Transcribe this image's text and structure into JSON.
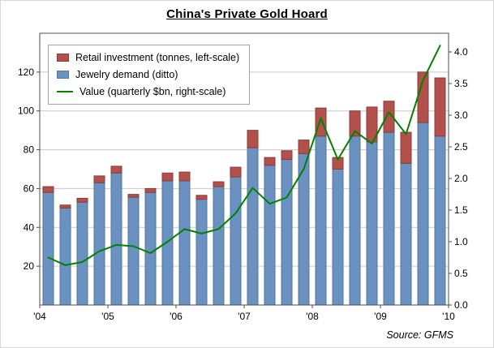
{
  "title": "China's Private Gold Hoard",
  "source_note": "Source: GFMS",
  "legend": [
    {
      "label": "Retail investment (tonnes, left-scale)",
      "swatch": "red-box"
    },
    {
      "label": "Jewelry demand (ditto)",
      "swatch": "blue-box"
    },
    {
      "label": "Value (quarterly $bn, right-scale)",
      "swatch": "green-line"
    }
  ],
  "colors": {
    "retail": "#b2504b",
    "retail_edge": "#8c3c38",
    "jewelry": "#6b91c1",
    "jewelry_edge": "#53779f",
    "line": "#008200",
    "grid": "#c9c9c9",
    "frame": "#4d4d4d",
    "text": "#000000"
  },
  "chart_data": {
    "type": "bar+line",
    "title": "China's Private Gold Hoard",
    "x_labels": [
      "'04",
      "'05",
      "'06",
      "'07",
      "'08",
      "'09",
      "'10"
    ],
    "categories": [
      "2004 Q1",
      "2004 Q2",
      "2004 Q3",
      "2004 Q4",
      "2005 Q1",
      "2005 Q2",
      "2005 Q3",
      "2005 Q4",
      "2006 Q1",
      "2006 Q2",
      "2006 Q3",
      "2006 Q4",
      "2007 Q1",
      "2007 Q2",
      "2007 Q3",
      "2007 Q4",
      "2008 Q1",
      "2008 Q2",
      "2008 Q3",
      "2008 Q4",
      "2009 Q1",
      "2009 Q2",
      "2009 Q3",
      "2009 Q4"
    ],
    "series": [
      {
        "name": "Jewelry demand (tonnes)",
        "type": "bar-stack-bottom",
        "axis": "left",
        "values": [
          58,
          50,
          53,
          63,
          68,
          55.5,
          58,
          64,
          64,
          54.5,
          61,
          66,
          81,
          72,
          75,
          78,
          87,
          70,
          87,
          84,
          89,
          73,
          94,
          87
        ]
      },
      {
        "name": "Retail investment (tonnes)",
        "type": "bar-stack-top",
        "axis": "left",
        "values": [
          3,
          1.5,
          2,
          3.5,
          3.5,
          1.5,
          2,
          4,
          4.5,
          2,
          2.5,
          5,
          9,
          4,
          4.5,
          7,
          14.5,
          6,
          13,
          18,
          16,
          16,
          26,
          30
        ]
      },
      {
        "name": "Value (quarterly $bn)",
        "type": "line",
        "axis": "right",
        "values": [
          0.75,
          0.63,
          0.68,
          0.85,
          0.95,
          0.93,
          0.82,
          1.0,
          1.2,
          1.13,
          1.2,
          1.45,
          1.85,
          1.6,
          1.7,
          2.15,
          2.95,
          2.3,
          2.75,
          2.55,
          3.05,
          2.7,
          3.55,
          4.1
        ]
      }
    ],
    "left_axis": {
      "ticks": [
        20,
        40,
        60,
        80,
        100,
        120
      ],
      "range": [
        0,
        140
      ]
    },
    "right_axis": {
      "ticks": [
        0,
        0.5,
        1,
        1.5,
        2,
        2.5,
        3,
        3.5,
        4
      ],
      "range": [
        0,
        4.295
      ]
    },
    "grid": "horizontal",
    "legend_position": "top-left-inside"
  }
}
